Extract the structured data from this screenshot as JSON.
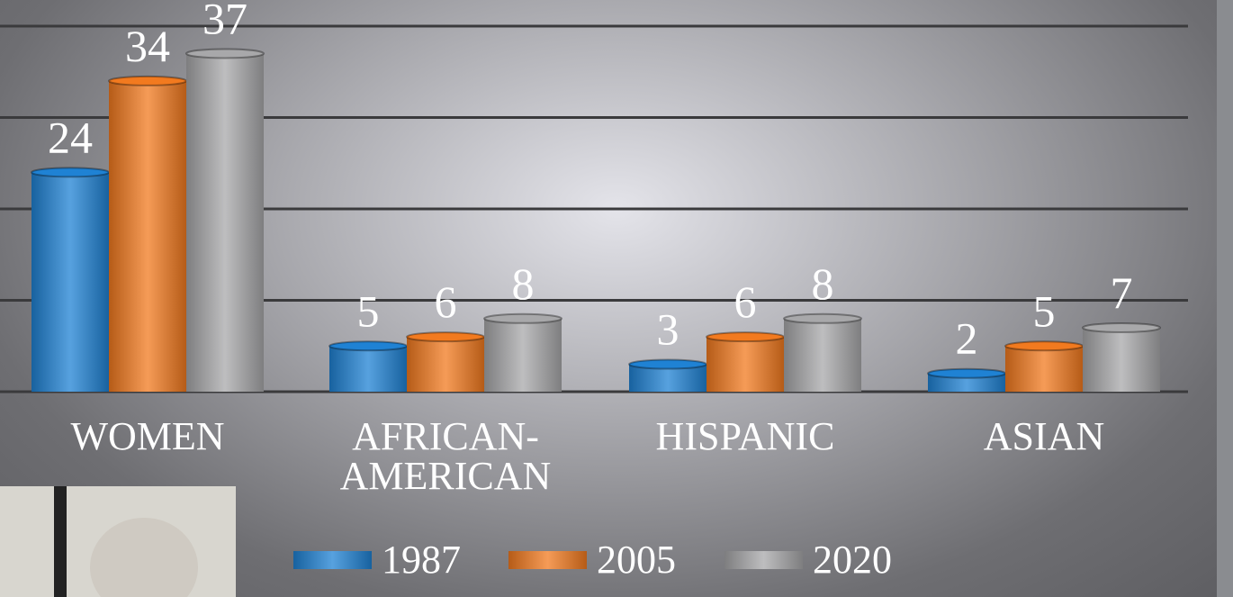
{
  "chart_data": {
    "type": "bar",
    "categories": [
      "WOMEN",
      "AFRICAN-AMERICAN",
      "HISPANIC",
      "ASIAN"
    ],
    "series": [
      {
        "name": "1987",
        "color": "#1f82d4",
        "values": [
          24,
          5,
          3,
          2
        ]
      },
      {
        "name": "2005",
        "color": "#f27a1f",
        "values": [
          34,
          6,
          6,
          5
        ]
      },
      {
        "name": "2020",
        "color": "#a8a8aa",
        "values": [
          37,
          8,
          8,
          7
        ]
      }
    ],
    "ylim": [
      0,
      40
    ],
    "yticks": [
      0,
      10,
      20,
      30,
      40
    ],
    "grid": true
  }
}
